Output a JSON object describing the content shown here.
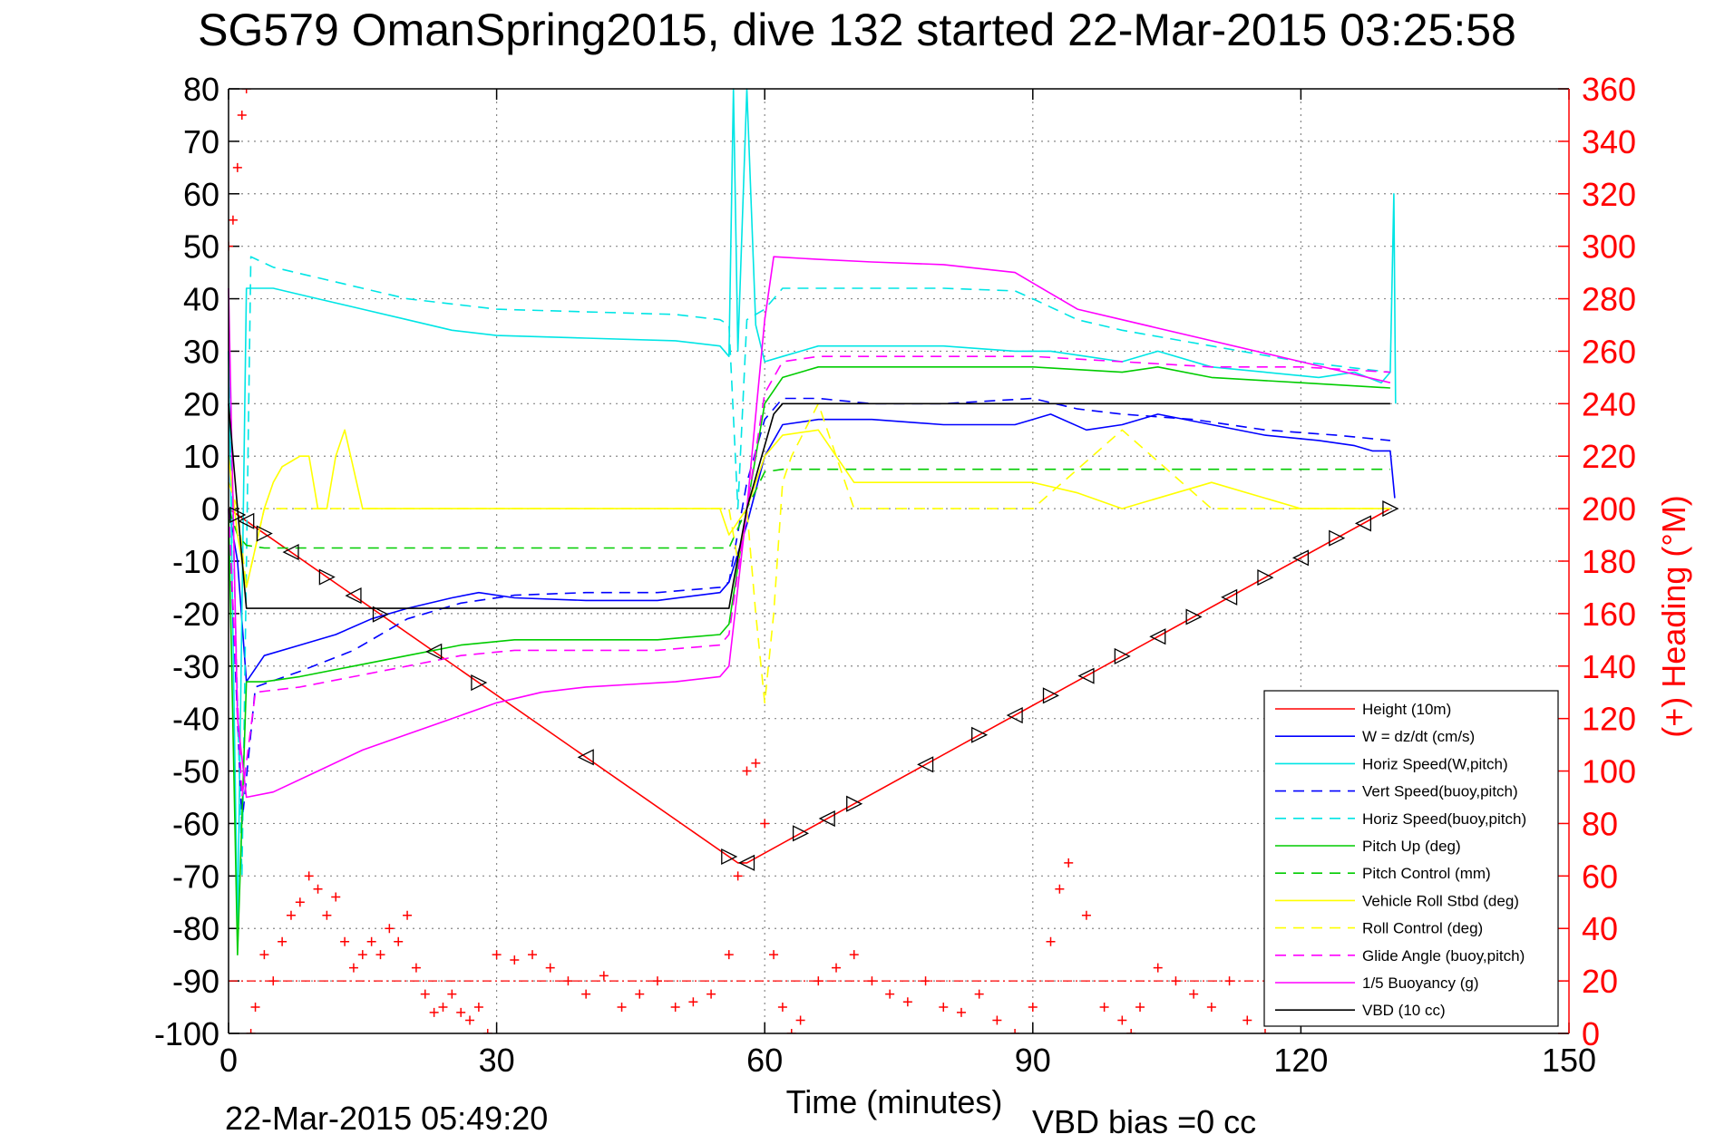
{
  "chart_data": {
    "type": "line",
    "title": "SG579 OmanSpring2015, dive 132 started 22-Mar-2015 03:25:58",
    "xlabel": "Time (minutes)",
    "ylabel": "",
    "y2label": "(+) Heading (°M)",
    "xlim": [
      0,
      150
    ],
    "ylim": [
      -100,
      80
    ],
    "y2lim": [
      0,
      360
    ],
    "xticks": [
      "0",
      "30",
      "60",
      "90",
      "120",
      "150"
    ],
    "yticks": [
      "80",
      "70",
      "60",
      "50",
      "40",
      "30",
      "20",
      "10",
      "0",
      "-10",
      "-20",
      "-30",
      "-40",
      "-50",
      "-60",
      "-70",
      "-80",
      "-90",
      "-100"
    ],
    "y2ticks": [
      "360",
      "340",
      "320",
      "300",
      "280",
      "260",
      "240",
      "220",
      "200",
      "180",
      "160",
      "140",
      "120",
      "100",
      "80",
      "60",
      "40",
      "20",
      "0"
    ],
    "grid": true,
    "legend_position": "bottom-right",
    "footer_date": "22-Mar-2015 05:49:20",
    "footer_bias": "VBD bias =0 cc",
    "series": [
      {
        "name": "Height (10m)",
        "color": "#ff0000",
        "style": "solid",
        "x": [
          0,
          57,
          58,
          130
        ],
        "y": [
          0,
          -67.5,
          -67.5,
          0
        ]
      },
      {
        "name": "W = dz/dt (cm/s)",
        "color": "#0000ff",
        "style": "solid",
        "x": [
          0,
          1,
          2,
          4,
          8,
          12,
          16,
          20,
          25,
          28,
          32,
          40,
          48,
          55,
          56,
          58,
          60,
          62,
          66,
          72,
          80,
          88,
          92,
          96,
          100,
          104,
          110,
          116,
          122,
          126,
          128,
          130,
          130.5
        ],
        "y": [
          0,
          -10,
          -33,
          -28,
          -26,
          -24,
          -21,
          -19,
          -17,
          -16,
          -17,
          -17.5,
          -17.5,
          -16,
          -14,
          -3,
          10,
          16,
          17,
          17,
          16,
          16,
          18,
          15,
          16,
          18,
          16,
          14,
          13,
          12,
          11,
          11,
          2
        ]
      },
      {
        "name": "Horiz Speed(W,pitch)",
        "color": "#00e5e5",
        "style": "solid",
        "x": [
          0,
          1,
          2,
          5,
          10,
          15,
          20,
          25,
          30,
          40,
          50,
          55,
          56,
          56.5,
          57,
          58,
          59,
          60,
          62,
          66,
          72,
          80,
          88,
          92,
          96,
          100,
          104,
          110,
          116,
          122,
          126,
          129,
          130,
          130.4,
          130.6
        ],
        "y": [
          30,
          -80,
          42,
          42,
          40,
          38,
          36,
          34,
          33,
          32.5,
          32,
          31,
          29,
          80,
          30,
          80,
          35,
          28,
          29,
          31,
          31,
          31,
          30,
          30,
          29,
          28,
          30,
          27,
          26,
          25,
          26,
          24,
          26,
          60,
          20
        ]
      },
      {
        "name": "Vert Speed(buoy,pitch)",
        "color": "#0000ff",
        "style": "dashed",
        "x": [
          0,
          1.5,
          3,
          8,
          14,
          20,
          26,
          32,
          40,
          48,
          55,
          56,
          58,
          60,
          62,
          66,
          72,
          80,
          90,
          95,
          100,
          108,
          116,
          124,
          130
        ],
        "y": [
          0,
          -60,
          -34,
          -31,
          -27,
          -21,
          -18,
          -16.5,
          -16,
          -16,
          -15,
          -14,
          5,
          17,
          21,
          21,
          20,
          20,
          21,
          19,
          18,
          17,
          15,
          14,
          13
        ]
      },
      {
        "name": "Horiz Speed(buoy,pitch)",
        "color": "#00e5e5",
        "style": "dashed",
        "x": [
          0,
          1.5,
          2.5,
          5,
          10,
          15,
          20,
          25,
          30,
          40,
          50,
          55,
          56,
          57,
          58,
          60,
          62,
          66,
          72,
          80,
          88,
          90,
          95,
          100,
          110,
          120,
          130
        ],
        "y": [
          30,
          -70,
          48,
          46,
          44,
          42,
          40,
          39,
          38,
          37.5,
          37,
          36,
          35,
          0,
          36,
          38,
          42,
          42,
          42,
          42,
          41.5,
          40,
          36,
          34,
          31,
          28,
          26
        ]
      },
      {
        "name": "Pitch Up (deg)",
        "color": "#00cc00",
        "style": "solid",
        "x": [
          0,
          1,
          2,
          4,
          8,
          14,
          20,
          26,
          32,
          40,
          48,
          55,
          56,
          58,
          60,
          62,
          66,
          72,
          80,
          90,
          100,
          104,
          110,
          120,
          130
        ],
        "y": [
          0,
          -85,
          -33,
          -33,
          -32,
          -30,
          -28,
          -26,
          -25,
          -25,
          -25,
          -24,
          -22,
          0,
          20,
          25,
          27,
          27,
          27,
          27,
          26,
          27,
          25,
          24,
          23
        ]
      },
      {
        "name": "Pitch Control (mm)",
        "color": "#00cc00",
        "style": "dashed",
        "x": [
          0,
          1,
          2,
          4,
          55,
          56,
          58,
          60,
          62,
          130
        ],
        "y": [
          0,
          -5,
          -7,
          -7.5,
          -7.5,
          -7.5,
          0,
          7,
          7.5,
          7.5
        ]
      },
      {
        "name": "Vehicle Roll Stbd (deg)",
        "color": "#ffff00",
        "style": "solid",
        "x": [
          0,
          1,
          2,
          4,
          5,
          6,
          7,
          8,
          9,
          10,
          11,
          12,
          13,
          15,
          20,
          25,
          30,
          40,
          50,
          55,
          56,
          58,
          60,
          62,
          66,
          70,
          80,
          90,
          95,
          100,
          110,
          120,
          130
        ],
        "y": [
          10,
          -5,
          -15,
          0,
          5,
          8,
          9,
          10,
          10,
          0,
          0,
          10,
          15,
          0,
          0,
          0,
          0,
          0,
          0,
          0,
          -5,
          0,
          10,
          14,
          15,
          5,
          5,
          5,
          3,
          0,
          5,
          0,
          0
        ]
      },
      {
        "name": "Roll Control (deg)",
        "color": "#ffff00",
        "style": "dashed",
        "x": [
          0,
          1,
          2,
          4,
          55,
          56,
          57,
          58,
          59,
          60,
          61,
          62,
          63,
          66,
          70,
          80,
          90,
          100,
          110,
          120,
          130
        ],
        "y": [
          5,
          0,
          -15,
          0,
          0,
          0,
          -10,
          0,
          -20,
          -37,
          -20,
          5,
          10,
          20,
          0,
          0,
          0,
          15,
          0,
          0,
          0
        ]
      },
      {
        "name": "Glide Angle (buoy,pitch)",
        "color": "#ff00ff",
        "style": "dashed",
        "x": [
          0,
          1.5,
          3,
          8,
          14,
          20,
          26,
          32,
          40,
          48,
          55,
          56,
          58,
          60,
          62,
          66,
          72,
          80,
          90,
          100,
          110,
          120,
          130
        ],
        "y": [
          0,
          -55,
          -35,
          -34,
          -32,
          -30,
          -28,
          -27,
          -27,
          -27,
          -26,
          -24,
          0,
          22,
          28,
          29,
          29,
          29,
          29,
          28,
          27,
          27,
          26
        ]
      },
      {
        "name": "1/5 Buoyancy (g)",
        "color": "#ff00ff",
        "style": "solid",
        "x": [
          0,
          1,
          2,
          5,
          10,
          15,
          20,
          25,
          30,
          35,
          40,
          45,
          50,
          55,
          56,
          58,
          60,
          61,
          66,
          72,
          80,
          88,
          90,
          95,
          100,
          110,
          120,
          130
        ],
        "y": [
          42,
          -40,
          -55,
          -54,
          -50,
          -46,
          -43,
          -40,
          -37,
          -35,
          -34,
          -33.5,
          -33,
          -32,
          -30,
          0,
          36,
          48,
          47.5,
          47,
          46.5,
          45,
          43,
          38,
          36,
          32,
          28,
          24
        ]
      },
      {
        "name": "VBD (10 cc)",
        "color": "#000000",
        "style": "solid",
        "x": [
          0,
          1,
          2,
          56,
          56.5,
          58,
          60,
          61,
          62,
          130
        ],
        "y": [
          20,
          0,
          -19,
          -19,
          -14,
          0,
          12,
          18,
          20,
          20
        ]
      }
    ],
    "heading": {
      "name": "(+) Heading (°M)",
      "color": "#ff0000",
      "marker": "+",
      "x": [
        0,
        0.5,
        1,
        1.5,
        2,
        2.5,
        3,
        4,
        5,
        6,
        7,
        8,
        9,
        10,
        11,
        12,
        13,
        14,
        15,
        16,
        17,
        18,
        19,
        20,
        21,
        22,
        23,
        24,
        25,
        26,
        27,
        28,
        29,
        30,
        32,
        34,
        36,
        38,
        40,
        42,
        44,
        46,
        48,
        50,
        52,
        54,
        56,
        57,
        58,
        59,
        60,
        61,
        62,
        63,
        64,
        66,
        68,
        70,
        72,
        74,
        76,
        78,
        80,
        82,
        84,
        86,
        88,
        90,
        92,
        93,
        94,
        96,
        98,
        100,
        101,
        102,
        104,
        106,
        108,
        110,
        112,
        114,
        116,
        118
      ],
      "y": [
        300,
        310,
        330,
        350,
        360,
        0,
        10,
        30,
        20,
        35,
        45,
        50,
        60,
        55,
        45,
        52,
        35,
        25,
        30,
        35,
        30,
        40,
        35,
        45,
        25,
        15,
        8,
        10,
        15,
        8,
        5,
        10,
        0,
        30,
        28,
        30,
        25,
        20,
        15,
        22,
        10,
        15,
        20,
        10,
        12,
        15,
        30,
        60,
        100,
        103,
        80,
        30,
        10,
        0,
        5,
        20,
        25,
        30,
        20,
        15,
        12,
        20,
        10,
        8,
        15,
        5,
        0,
        10,
        35,
        55,
        65,
        45,
        10,
        5,
        0,
        10,
        25,
        20,
        15,
        10,
        20,
        5,
        0,
        10
      ]
    },
    "markers": {
      "color": "#000000",
      "down_x": [
        1,
        2,
        4,
        7,
        11,
        14,
        17,
        23,
        28,
        40,
        56,
        58
      ],
      "up_x": [
        64,
        67,
        70,
        78,
        84,
        88,
        92,
        96,
        100,
        104,
        108,
        112,
        116,
        120,
        124,
        127,
        130
      ]
    }
  }
}
